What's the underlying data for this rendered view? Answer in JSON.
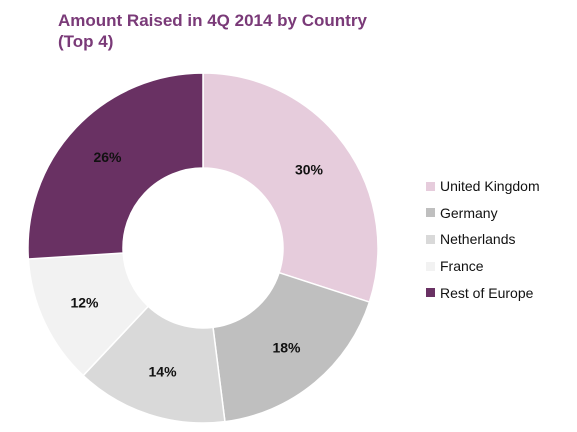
{
  "chart_data": {
    "type": "pie",
    "title_line1": "Amount Raised in 4Q 2014 by Country",
    "title_line2": "(Top 4)",
    "donut": true,
    "legend_position": "right",
    "slices": [
      {
        "name": "United Kingdom",
        "value": 30,
        "label": "30%",
        "color": "#e6ccdc"
      },
      {
        "name": "Germany",
        "value": 18,
        "label": "18%",
        "color": "#bfbfbf"
      },
      {
        "name": "Netherlands",
        "value": 14,
        "label": "14%",
        "color": "#d9d9d9"
      },
      {
        "name": "France",
        "value": 12,
        "label": "12%",
        "color": "#f2f2f2"
      },
      {
        "name": "Rest of Europe",
        "value": 26,
        "label": "26%",
        "color": "#693163"
      }
    ]
  }
}
